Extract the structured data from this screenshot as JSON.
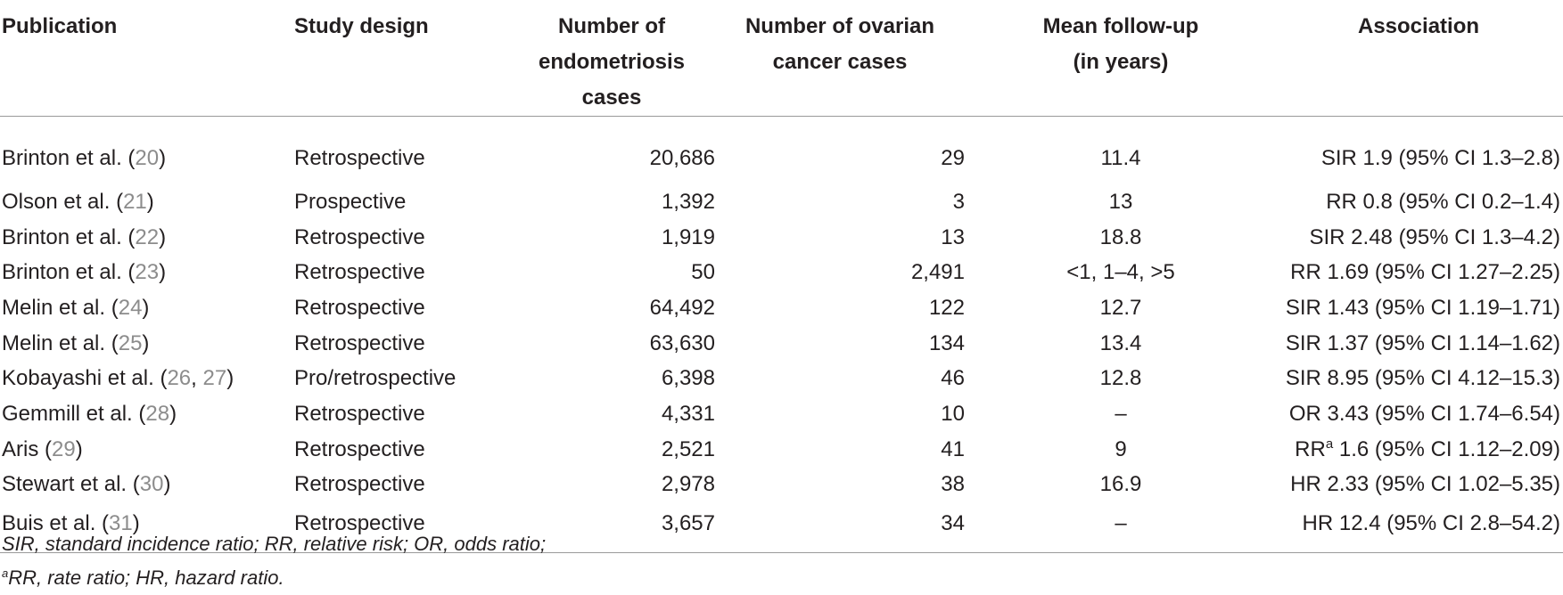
{
  "headers": {
    "publication": "Publication",
    "study_design": "Study design",
    "endo_line1": "Number of",
    "endo_line2": "endometriosis cases",
    "ovar_line1": "Number of ovarian",
    "ovar_line2": "cancer cases",
    "follow_line1": "Mean follow-up",
    "follow_line2": "(in years)",
    "association": "Association"
  },
  "rows": [
    {
      "author": "Brinton et al. (",
      "refs": [
        "20"
      ],
      "design": "Retrospective",
      "endo": "20,686",
      "ovar": "29",
      "follow": "11.4",
      "assoc_pre": "SIR",
      "assoc_sup": "",
      "assoc_post": " 1.9 (95% CI 1.3–2.8)"
    },
    {
      "author": "Olson et al. (",
      "refs": [
        "21"
      ],
      "design": "Prospective",
      "endo": "1,392",
      "ovar": "3",
      "follow": "13",
      "assoc_pre": "RR",
      "assoc_sup": "",
      "assoc_post": " 0.8 (95% CI 0.2–1.4)"
    },
    {
      "author": "Brinton et al. (",
      "refs": [
        "22"
      ],
      "design": "Retrospective",
      "endo": "1,919",
      "ovar": "13",
      "follow": "18.8",
      "assoc_pre": "SIR",
      "assoc_sup": "",
      "assoc_post": " 2.48 (95% CI 1.3–4.2)"
    },
    {
      "author": "Brinton et al. (",
      "refs": [
        "23"
      ],
      "design": "Retrospective",
      "endo": "50",
      "ovar": "2,491",
      "follow": "<1, 1–4, >5",
      "assoc_pre": "RR",
      "assoc_sup": "",
      "assoc_post": " 1.69 (95% CI 1.27–2.25)"
    },
    {
      "author": "Melin et al. (",
      "refs": [
        "24"
      ],
      "design": "Retrospective",
      "endo": "64,492",
      "ovar": "122",
      "follow": "12.7",
      "assoc_pre": "SIR",
      "assoc_sup": "",
      "assoc_post": " 1.43 (95% CI 1.19–1.71)"
    },
    {
      "author": "Melin et al. (",
      "refs": [
        "25"
      ],
      "design": "Retrospective",
      "endo": "63,630",
      "ovar": "134",
      "follow": "13.4",
      "assoc_pre": "SIR",
      "assoc_sup": "",
      "assoc_post": " 1.37 (95% CI 1.14–1.62)"
    },
    {
      "author": "Kobayashi et al. (",
      "refs": [
        "26",
        "27"
      ],
      "design": "Pro/retrospective",
      "endo": "6,398",
      "ovar": "46",
      "follow": "12.8",
      "assoc_pre": "SIR",
      "assoc_sup": "",
      "assoc_post": " 8.95 (95% CI 4.12–15.3)"
    },
    {
      "author": "Gemmill et al. (",
      "refs": [
        "28"
      ],
      "design": "Retrospective",
      "endo": "4,331",
      "ovar": "10",
      "follow": "–",
      "assoc_pre": "OR",
      "assoc_sup": "",
      "assoc_post": " 3.43 (95% CI 1.74–6.54)"
    },
    {
      "author": "Aris (",
      "refs": [
        "29"
      ],
      "design": "Retrospective",
      "endo": "2,521",
      "ovar": "41",
      "follow": "9",
      "assoc_pre": "RR",
      "assoc_sup": "a",
      "assoc_post": " 1.6 (95% CI 1.12–2.09)"
    },
    {
      "author": "Stewart et al. (",
      "refs": [
        "30"
      ],
      "design": "Retrospective",
      "endo": "2,978",
      "ovar": "38",
      "follow": "16.9",
      "assoc_pre": "HR",
      "assoc_sup": "",
      "assoc_post": " 2.33 (95% CI 1.02–5.35)"
    },
    {
      "author": "Buis et al. (",
      "refs": [
        "31"
      ],
      "design": "Retrospective",
      "endo": "3,657",
      "ovar": "34",
      "follow": "–",
      "assoc_pre": "HR",
      "assoc_sup": "",
      "assoc_post": " 12.4 (95% CI 2.8–54.2)"
    }
  ],
  "notes": {
    "line1": "SIR, standard incidence ratio; RR, relative risk; OR, odds ratio;",
    "line2_sup": "a",
    "line2": "RR, rate ratio; HR, hazard ratio."
  }
}
